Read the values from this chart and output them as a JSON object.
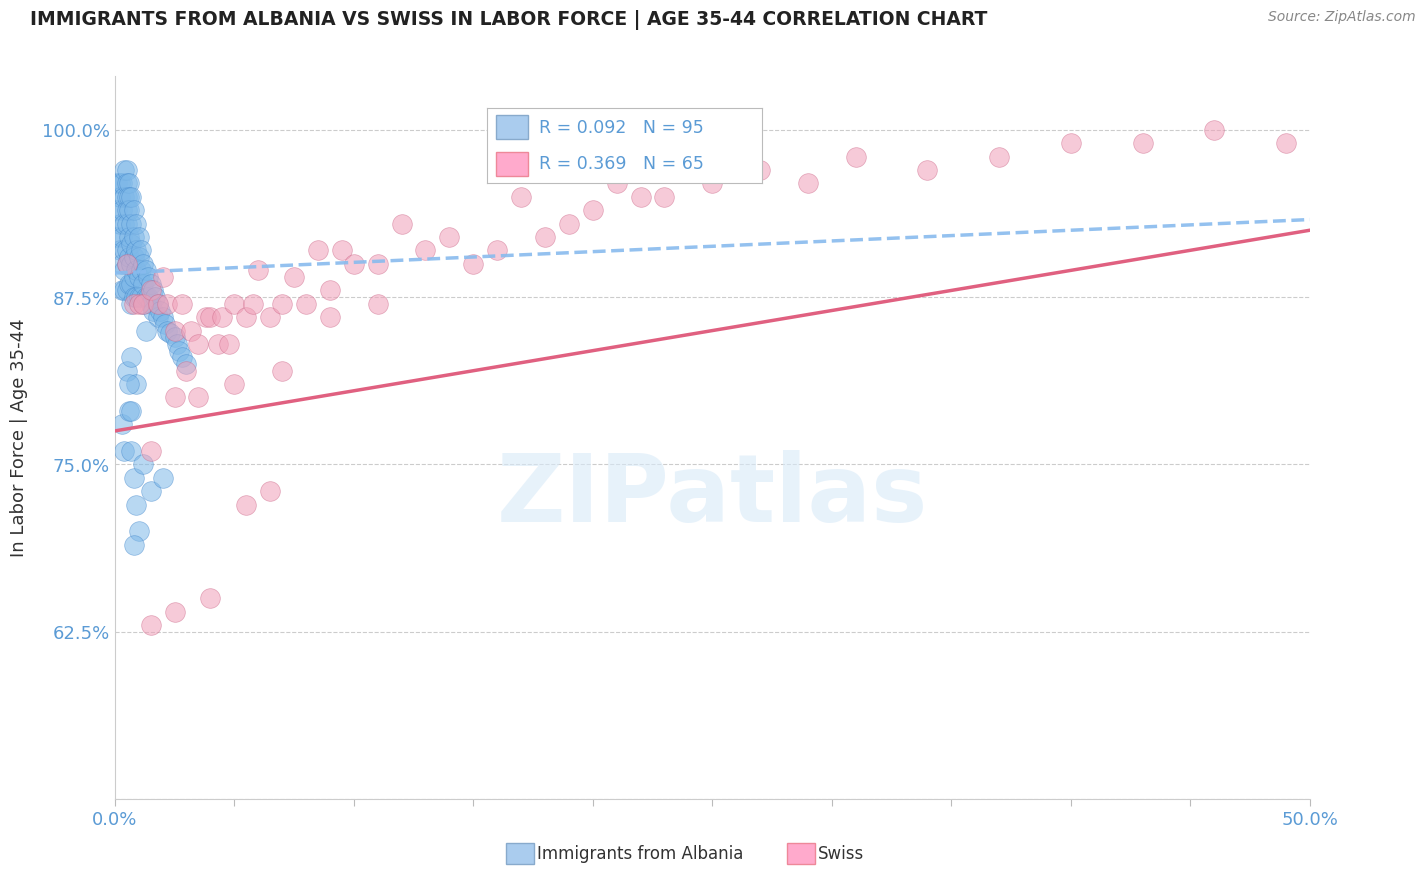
{
  "title": "IMMIGRANTS FROM ALBANIA VS SWISS IN LABOR FORCE | AGE 35-44 CORRELATION CHART",
  "source": "Source: ZipAtlas.com",
  "ylabel": "In Labor Force | Age 35-44",
  "xlim": [
    0.0,
    0.5
  ],
  "ylim": [
    0.5,
    1.04
  ],
  "xticks": [
    0.0,
    0.05,
    0.1,
    0.15,
    0.2,
    0.25,
    0.3,
    0.35,
    0.4,
    0.45,
    0.5
  ],
  "yticks": [
    0.5,
    0.625,
    0.75,
    0.875,
    1.0
  ],
  "albania_scatter_color": "#7EB8E8",
  "albania_edge_color": "#4488CC",
  "swiss_scatter_color": "#F0A0B8",
  "swiss_edge_color": "#CC6688",
  "albania_trend_color": "#88BBEE",
  "swiss_trend_color": "#E06080",
  "tick_color": "#5B9BD5",
  "background_color": "#FFFFFF",
  "grid_color": "#CCCCCC",
  "watermark_color": "#D8EAF8",
  "watermark_alpha": 0.6,
  "albania_x": [
    0.001,
    0.001,
    0.001,
    0.002,
    0.002,
    0.002,
    0.002,
    0.003,
    0.003,
    0.003,
    0.003,
    0.003,
    0.004,
    0.004,
    0.004,
    0.004,
    0.004,
    0.004,
    0.005,
    0.005,
    0.005,
    0.005,
    0.005,
    0.005,
    0.005,
    0.005,
    0.006,
    0.006,
    0.006,
    0.006,
    0.006,
    0.006,
    0.007,
    0.007,
    0.007,
    0.007,
    0.007,
    0.007,
    0.008,
    0.008,
    0.008,
    0.008,
    0.008,
    0.009,
    0.009,
    0.009,
    0.009,
    0.01,
    0.01,
    0.01,
    0.01,
    0.011,
    0.011,
    0.011,
    0.012,
    0.012,
    0.012,
    0.013,
    0.013,
    0.014,
    0.014,
    0.015,
    0.015,
    0.016,
    0.016,
    0.017,
    0.018,
    0.018,
    0.019,
    0.02,
    0.021,
    0.022,
    0.023,
    0.025,
    0.026,
    0.027,
    0.028,
    0.03,
    0.003,
    0.004,
    0.005,
    0.006,
    0.007,
    0.008,
    0.009,
    0.01,
    0.012,
    0.007,
    0.008,
    0.015,
    0.02,
    0.009,
    0.006,
    0.013,
    0.007
  ],
  "albania_y": [
    0.96,
    0.94,
    0.92,
    0.96,
    0.95,
    0.93,
    0.91,
    0.96,
    0.94,
    0.92,
    0.9,
    0.88,
    0.97,
    0.95,
    0.93,
    0.91,
    0.895,
    0.88,
    0.97,
    0.96,
    0.95,
    0.94,
    0.93,
    0.91,
    0.9,
    0.88,
    0.96,
    0.95,
    0.94,
    0.92,
    0.905,
    0.885,
    0.95,
    0.93,
    0.915,
    0.9,
    0.885,
    0.87,
    0.94,
    0.92,
    0.905,
    0.89,
    0.875,
    0.93,
    0.91,
    0.895,
    0.875,
    0.92,
    0.905,
    0.89,
    0.875,
    0.91,
    0.895,
    0.875,
    0.9,
    0.885,
    0.87,
    0.895,
    0.875,
    0.89,
    0.875,
    0.885,
    0.87,
    0.88,
    0.865,
    0.875,
    0.87,
    0.86,
    0.865,
    0.86,
    0.855,
    0.85,
    0.848,
    0.845,
    0.84,
    0.835,
    0.83,
    0.825,
    0.78,
    0.76,
    0.82,
    0.79,
    0.76,
    0.74,
    0.72,
    0.7,
    0.75,
    0.83,
    0.69,
    0.73,
    0.74,
    0.81,
    0.81,
    0.85,
    0.79
  ],
  "swiss_x": [
    0.005,
    0.008,
    0.01,
    0.012,
    0.015,
    0.018,
    0.02,
    0.022,
    0.025,
    0.028,
    0.03,
    0.032,
    0.035,
    0.038,
    0.04,
    0.043,
    0.045,
    0.048,
    0.05,
    0.055,
    0.058,
    0.06,
    0.065,
    0.07,
    0.075,
    0.08,
    0.085,
    0.09,
    0.095,
    0.1,
    0.11,
    0.12,
    0.13,
    0.14,
    0.15,
    0.16,
    0.17,
    0.18,
    0.19,
    0.2,
    0.21,
    0.22,
    0.23,
    0.25,
    0.27,
    0.29,
    0.31,
    0.34,
    0.37,
    0.4,
    0.43,
    0.46,
    0.49,
    0.015,
    0.025,
    0.035,
    0.05,
    0.07,
    0.09,
    0.11,
    0.015,
    0.025,
    0.04,
    0.055,
    0.065
  ],
  "swiss_y": [
    0.9,
    0.87,
    0.87,
    0.87,
    0.88,
    0.87,
    0.89,
    0.87,
    0.85,
    0.87,
    0.82,
    0.85,
    0.84,
    0.86,
    0.86,
    0.84,
    0.86,
    0.84,
    0.87,
    0.86,
    0.87,
    0.895,
    0.86,
    0.87,
    0.89,
    0.87,
    0.91,
    0.88,
    0.91,
    0.9,
    0.9,
    0.93,
    0.91,
    0.92,
    0.9,
    0.91,
    0.95,
    0.92,
    0.93,
    0.94,
    0.96,
    0.95,
    0.95,
    0.96,
    0.97,
    0.96,
    0.98,
    0.97,
    0.98,
    0.99,
    0.99,
    1.0,
    0.99,
    0.76,
    0.8,
    0.8,
    0.81,
    0.82,
    0.86,
    0.87,
    0.63,
    0.64,
    0.65,
    0.72,
    0.73
  ]
}
